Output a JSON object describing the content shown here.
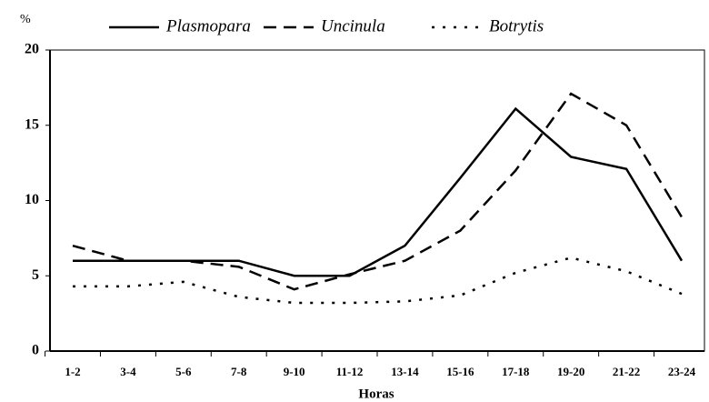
{
  "chart_data": {
    "type": "line",
    "y_label": "%",
    "x_label": "Horas",
    "categories": [
      "1-2",
      "3-4",
      "5-6",
      "7-8",
      "9-10",
      "11-12",
      "13-14",
      "15-16",
      "17-18",
      "19-20",
      "21-22",
      "23-24"
    ],
    "series": [
      {
        "name": "Plasmopara",
        "color": "#000000",
        "dash": "solid",
        "values": [
          6,
          6,
          6,
          6,
          5,
          5,
          7,
          11.5,
          16.1,
          12.9,
          12.1,
          6
        ]
      },
      {
        "name": "Uncinula",
        "color": "#000000",
        "dash": "dashed",
        "values": [
          7,
          6,
          6,
          5.6,
          4.1,
          5.1,
          6,
          8,
          12,
          17.1,
          15,
          8.9
        ]
      },
      {
        "name": "Botrytis",
        "color": "#000000",
        "dash": "dotted",
        "values": [
          4.3,
          4.3,
          4.6,
          3.6,
          3.2,
          3.2,
          3.3,
          3.7,
          5.2,
          6.2,
          5.3,
          3.8
        ]
      }
    ],
    "ylim": [
      0,
      20
    ],
    "yticks": [
      0,
      5,
      10,
      15,
      20
    ],
    "grid": false
  }
}
